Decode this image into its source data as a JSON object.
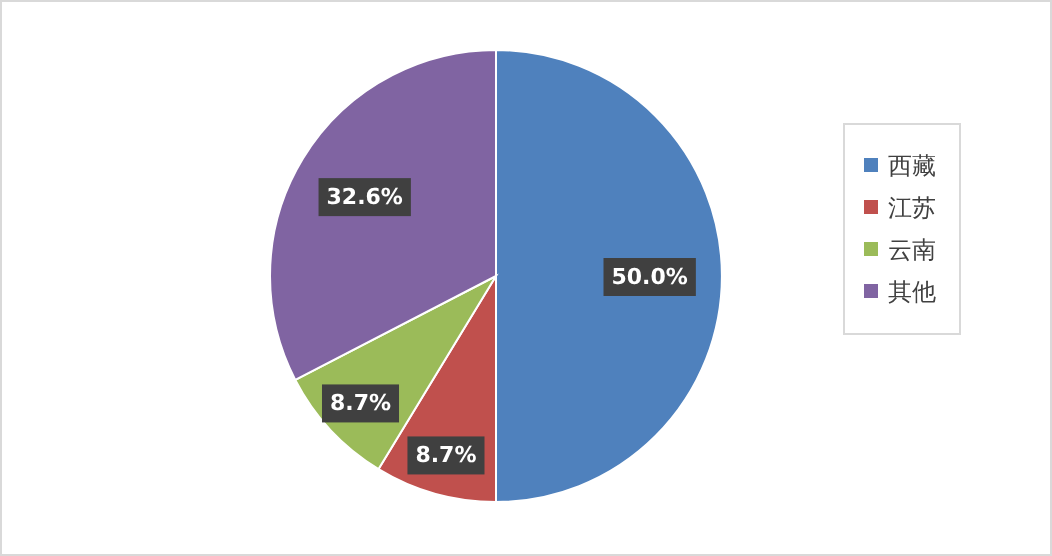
{
  "chart_data": {
    "type": "pie",
    "categories": [
      "西藏",
      "江苏",
      "云南",
      "其他"
    ],
    "values": [
      50.0,
      8.7,
      8.7,
      32.6
    ],
    "colors": [
      "#4f81bd",
      "#c0504d",
      "#9bbb59",
      "#8064a2"
    ],
    "value_labels": [
      "50.0%",
      "8.7%",
      "8.7%",
      "32.6%"
    ],
    "legend": "right"
  }
}
